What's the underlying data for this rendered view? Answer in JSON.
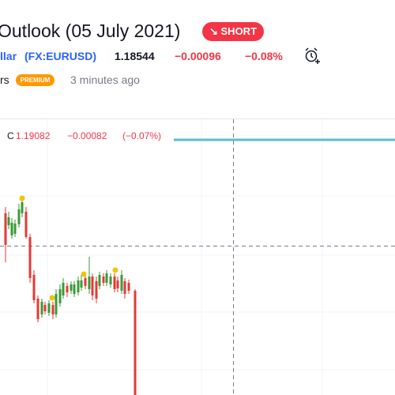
{
  "header": {
    "title": "Outlook (05 July 2021)",
    "badge": "SHORT",
    "symbol_name": "llar",
    "symbol": "(FX:EURUSD)",
    "price": "1.18544",
    "change": "−0.00096",
    "change_percent": "−0.08%",
    "author": "rs",
    "author_badge": "PREMIUM",
    "time": "3 minutes ago"
  },
  "chart_legend": {
    "label": "C",
    "close": "1.19082",
    "change": "−0.00082",
    "change_percent": "(−0.07%)"
  }
}
